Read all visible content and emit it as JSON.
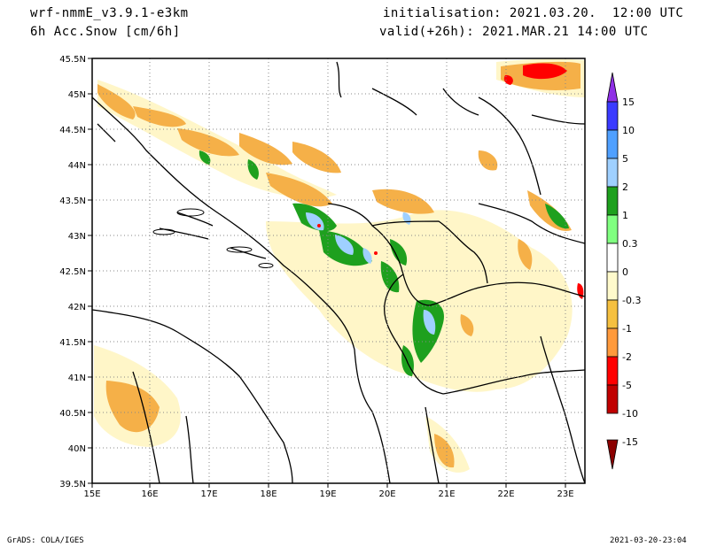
{
  "header": {
    "model": "wrf-nmmE_v3.9.1-e3km",
    "field": "6h Acc.Snow [cm/6h]",
    "init": "initialisation: 2021.03.20.  12:00 UTC",
    "valid": "valid(+26h): 2021.MAR.21 14:00 UTC"
  },
  "footer": {
    "left": "GrADS: COLA/IGES",
    "right": "2021-03-20-23:04"
  },
  "map": {
    "lon_ticks": [
      "15E",
      "16E",
      "17E",
      "18E",
      "19E",
      "20E",
      "21E",
      "22E",
      "23E"
    ],
    "lat_ticks": [
      "45.5N",
      "45N",
      "44.5N",
      "44N",
      "43.5N",
      "43N",
      "42.5N",
      "42N",
      "41.5N",
      "41N",
      "40.5N",
      "40N",
      "39.5N"
    ]
  },
  "colorbar": {
    "labels": [
      "15",
      "10",
      "5",
      "2",
      "1",
      "0.3",
      "0",
      "-0.3",
      "-1",
      "-2",
      "-5",
      "-10",
      "-15"
    ],
    "colors": [
      "#8f2fe6",
      "#3a3aff",
      "#4fa0ff",
      "#9fd0ff",
      "#1ea01e",
      "#80ff80",
      "#ffffff",
      "#fffacc",
      "#f5c040",
      "#ff9a3c",
      "#ff0000",
      "#c00000",
      "#8b0000"
    ]
  },
  "colors": {
    "orange": "#f5b048",
    "light_yellow": "#fff6c8",
    "green": "#1ea01e",
    "light_green": "#80ff80",
    "light_blue": "#9fd0ff",
    "red": "#ff0000"
  }
}
